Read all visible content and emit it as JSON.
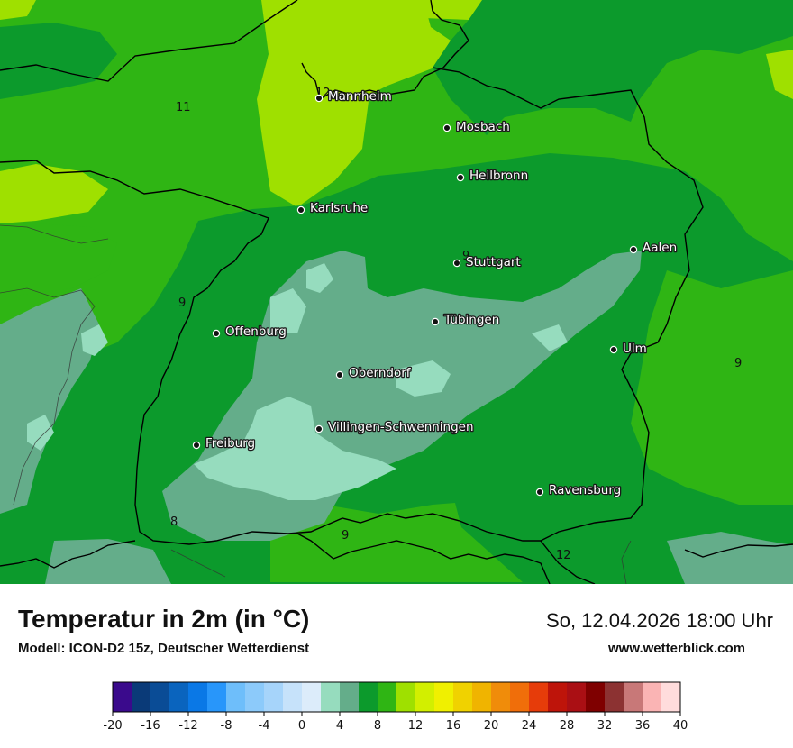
{
  "title": "Temperatur in 2m (in °C)",
  "subtitle": "Modell: ICON-D2 15z, Deutscher Wetterdienst",
  "datetime": "So, 12.04.2026 18:00 Uhr",
  "website": "www.wetterblick.com",
  "colors": {
    "t2_4": "#96dcbe",
    "t4_6": "#64ad8a",
    "t6_8": "#0c9a2c",
    "t8_10": "#2fb514",
    "t10_12": "#9fe000",
    "border": "#000000"
  },
  "cities": [
    {
      "name": "Mannheim"
    },
    {
      "name": "Mosbach"
    },
    {
      "name": "Heilbronn"
    },
    {
      "name": "Karlsruhe"
    },
    {
      "name": "Aalen"
    },
    {
      "name": "Stuttgart"
    },
    {
      "name": "Offenburg"
    },
    {
      "name": "Tübingen"
    },
    {
      "name": "Ulm"
    },
    {
      "name": "Oberndorf"
    },
    {
      "name": "Villingen-Schwenningen"
    },
    {
      "name": "Freiburg"
    },
    {
      "name": "Ravensburg"
    }
  ],
  "contour_labels": [
    "12",
    "11",
    "9",
    "9",
    "9",
    "8",
    "9",
    "12"
  ],
  "legend": {
    "colors": [
      "#3a0a8c",
      "#0a3a78",
      "#0a4c96",
      "#0a64be",
      "#0a78e6",
      "#2896fa",
      "#6ebefa",
      "#8ccafa",
      "#a6d4fa",
      "#c6e2fa",
      "#dcecfa",
      "#96dcbe",
      "#64ad8a",
      "#0c9a2c",
      "#2fb514",
      "#9fe000",
      "#d2ef00",
      "#f0f000",
      "#f0d200",
      "#f0b400",
      "#f08c0a",
      "#f06e0a",
      "#e63c0a",
      "#be140a",
      "#aa0f14",
      "#7f0000",
      "#8c3232",
      "#c87878",
      "#fab4b4",
      "#ffdcdc"
    ],
    "ticks": [
      "-20",
      "-16",
      "-12",
      "-8",
      "-4",
      "0",
      "4",
      "8",
      "12",
      "16",
      "20",
      "24",
      "28",
      "32",
      "36",
      "40"
    ]
  }
}
